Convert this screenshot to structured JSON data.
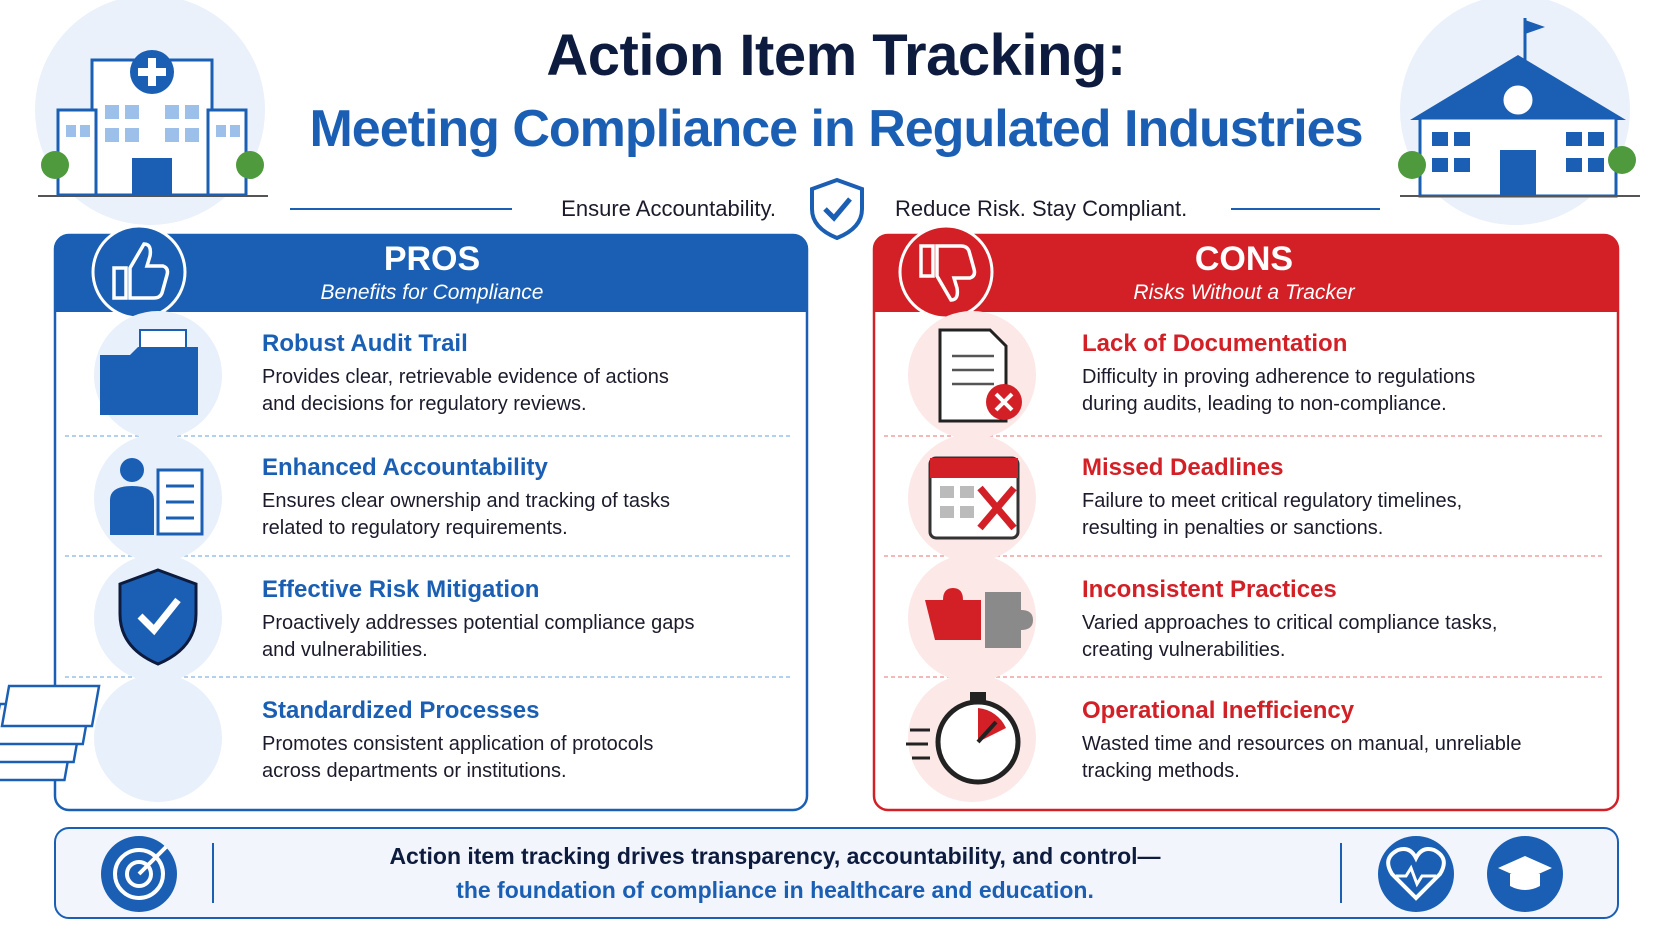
{
  "header": {
    "title": "Action Item Tracking:",
    "subtitle": "Meeting Compliance in Regulated Industries",
    "tagline_left": "Ensure Accountability.",
    "tagline_right": "Reduce Risk. Stay Compliant."
  },
  "pros": {
    "heading": "PROS",
    "subheading": "Benefits for Compliance",
    "items": [
      {
        "title": "Robust Audit Trail",
        "description": "Provides clear, retrievable evidence of actions and decisions for regulatory reviews."
      },
      {
        "title": "Enhanced Accountability",
        "description": "Ensures clear ownership and tracking of tasks related to regulatory requirements."
      },
      {
        "title": "Effective Risk Mitigation",
        "description": "Proactively addresses potential compliance gaps and vulnerabilities."
      },
      {
        "title": "Standardized Processes",
        "description": "Promotes consistent application of protocols across departments or institutions."
      }
    ]
  },
  "cons": {
    "heading": "CONS",
    "subheading": "Risks Without a Tracker",
    "items": [
      {
        "title": "Lack of Documentation",
        "description": "Difficulty in proving adherence to regulations during audits, leading to non-compliance."
      },
      {
        "title": "Missed Deadlines",
        "description": "Failure to meet critical regulatory timelines, resulting in penalties or sanctions."
      },
      {
        "title": "Inconsistent Practices",
        "description": "Varied approaches to critical compliance tasks, creating vulnerabilities."
      },
      {
        "title": "Operational Inefficiency",
        "description": "Wasted time and resources on manual, unreliable tracking methods."
      }
    ]
  },
  "footer": {
    "line1": "Action item tracking drives transparency, accountability, and control—",
    "line2": "the foundation of compliance in healthcare and education."
  }
}
